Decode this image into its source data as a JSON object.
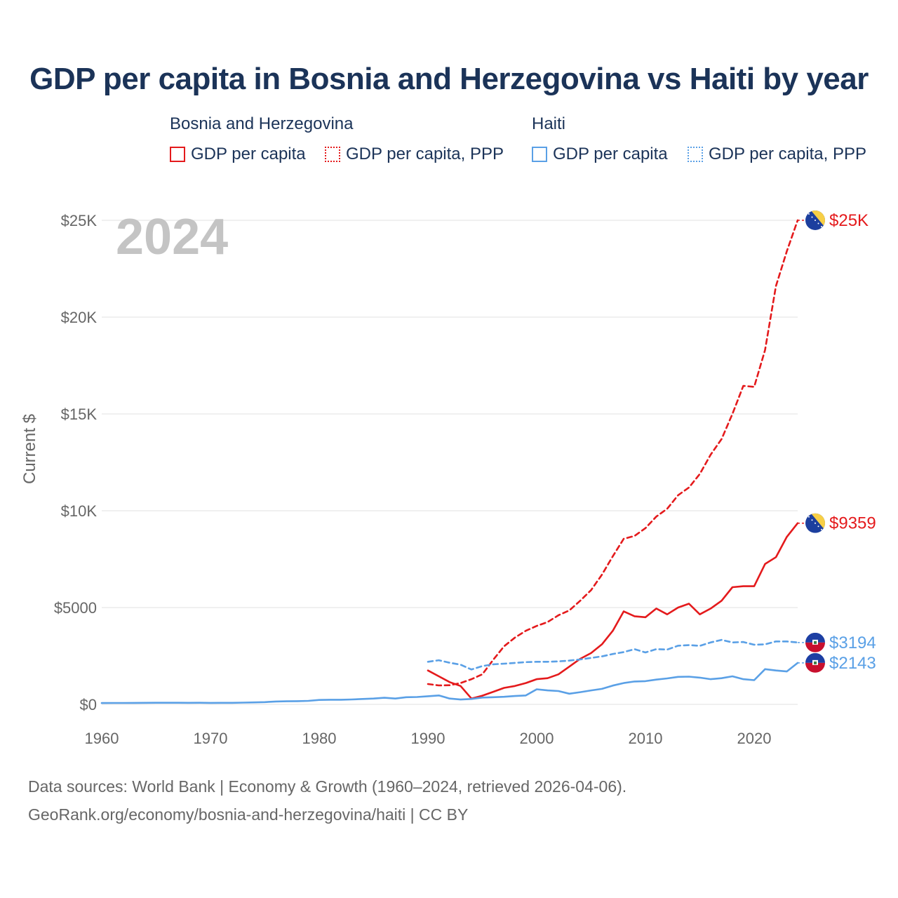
{
  "chart_data": {
    "type": "line",
    "title": "GDP per capita in Bosnia and Herzegovina vs Haiti by year",
    "year_watermark": "2024",
    "ylabel": "Current $",
    "xlabel": "",
    "xlim": [
      1960,
      2024
    ],
    "ylim": [
      0,
      25000
    ],
    "x_ticks": [
      1960,
      1970,
      1980,
      1990,
      2000,
      2010,
      2020
    ],
    "x_tick_labels": [
      "1960",
      "1970",
      "1980",
      "1990",
      "2000",
      "2010",
      "2020"
    ],
    "y_ticks": [
      0,
      5000,
      10000,
      15000,
      20000,
      25000
    ],
    "y_tick_labels": [
      "$0",
      "$5000",
      "$10K",
      "$15K",
      "$20K",
      "$25K"
    ],
    "legend": {
      "groups": [
        {
          "country": "Bosnia and Herzegovina",
          "items": [
            "GDP per capita",
            "GDP per capita, PPP"
          ]
        },
        {
          "country": "Haiti",
          "items": [
            "GDP per capita",
            "GDP per capita, PPP"
          ]
        }
      ]
    },
    "series": [
      {
        "name": "Bosnia and Herzegovina — GDP per capita, PPP",
        "color": "#e41a1c",
        "style": "dashed",
        "x": [
          1990,
          1991,
          1992,
          1993,
          1994,
          1995,
          1996,
          1997,
          1998,
          1999,
          2000,
          2001,
          2002,
          2003,
          2004,
          2005,
          2006,
          2007,
          2008,
          2009,
          2010,
          2011,
          2012,
          2013,
          2014,
          2015,
          2016,
          2017,
          2018,
          2019,
          2020,
          2021,
          2022,
          2023,
          2024
        ],
        "values": [
          1050,
          980,
          990,
          1100,
          1300,
          1550,
          2300,
          3000,
          3450,
          3800,
          4050,
          4250,
          4600,
          4850,
          5350,
          5900,
          6700,
          7650,
          8550,
          8700,
          9100,
          9700,
          10100,
          10800,
          11200,
          11900,
          12900,
          13700,
          15000,
          16450,
          16400,
          18300,
          21600,
          23400,
          25000
        ],
        "end_label": "$25K"
      },
      {
        "name": "Bosnia and Herzegovina — GDP per capita",
        "color": "#e41a1c",
        "style": "solid",
        "x": [
          1990,
          1991,
          1992,
          1993,
          1994,
          1995,
          1996,
          1997,
          1998,
          1999,
          2000,
          2001,
          2002,
          2003,
          2004,
          2005,
          2006,
          2007,
          2008,
          2009,
          2010,
          2011,
          2012,
          2013,
          2014,
          2015,
          2016,
          2017,
          2018,
          2019,
          2020,
          2021,
          2022,
          2023,
          2024
        ],
        "values": [
          1750,
          1450,
          1150,
          950,
          300,
          450,
          650,
          850,
          950,
          1100,
          1300,
          1350,
          1550,
          1950,
          2350,
          2650,
          3100,
          3800,
          4800,
          4550,
          4500,
          4950,
          4650,
          5000,
          5200,
          4650,
          4950,
          5350,
          6050,
          6100,
          6100,
          7250,
          7600,
          8650,
          9359
        ],
        "end_label": "$9359"
      },
      {
        "name": "Haiti — GDP per capita, PPP",
        "color": "#5aa0e6",
        "style": "dashed",
        "x": [
          1990,
          1991,
          1992,
          1993,
          1994,
          1995,
          1996,
          1997,
          1998,
          1999,
          2000,
          2001,
          2002,
          2003,
          2004,
          2005,
          2006,
          2007,
          2008,
          2009,
          2010,
          2011,
          2012,
          2013,
          2014,
          2015,
          2016,
          2017,
          2018,
          2019,
          2020,
          2021,
          2022,
          2023,
          2024
        ],
        "values": [
          2200,
          2280,
          2150,
          2050,
          1800,
          1980,
          2070,
          2100,
          2140,
          2180,
          2200,
          2200,
          2220,
          2260,
          2320,
          2400,
          2480,
          2600,
          2700,
          2850,
          2680,
          2850,
          2830,
          3030,
          3060,
          3020,
          3200,
          3330,
          3200,
          3220,
          3080,
          3100,
          3250,
          3250,
          3194
        ],
        "end_label": "$3194"
      },
      {
        "name": "Haiti — GDP per capita",
        "color": "#5aa0e6",
        "style": "solid",
        "x": [
          1960,
          1961,
          1962,
          1963,
          1964,
          1965,
          1966,
          1967,
          1968,
          1969,
          1970,
          1971,
          1972,
          1973,
          1974,
          1975,
          1976,
          1977,
          1978,
          1979,
          1980,
          1981,
          1982,
          1983,
          1984,
          1985,
          1986,
          1987,
          1988,
          1989,
          1990,
          1991,
          1992,
          1993,
          1994,
          1995,
          1996,
          1997,
          1998,
          1999,
          2000,
          2001,
          2002,
          2003,
          2004,
          2005,
          2006,
          2007,
          2008,
          2009,
          2010,
          2011,
          2012,
          2013,
          2014,
          2015,
          2016,
          2017,
          2018,
          2019,
          2020,
          2021,
          2022,
          2023,
          2024
        ],
        "values": [
          70,
          72,
          74,
          75,
          80,
          82,
          84,
          83,
          80,
          85,
          75,
          78,
          80,
          90,
          100,
          115,
          150,
          160,
          165,
          180,
          230,
          240,
          240,
          255,
          280,
          300,
          340,
          300,
          370,
          380,
          420,
          460,
          300,
          250,
          280,
          350,
          370,
          390,
          430,
          460,
          780,
          720,
          690,
          550,
          630,
          720,
          800,
          970,
          1100,
          1180,
          1200,
          1280,
          1340,
          1420,
          1430,
          1380,
          1300,
          1350,
          1450,
          1300,
          1250,
          1820,
          1750,
          1700,
          2143
        ],
        "end_label": "$2143"
      }
    ]
  },
  "footer": {
    "line1": "Data sources: World Bank | Economy & Growth (1960–2024, retrieved 2026-04-06).",
    "line2": "GeoRank.org/economy/bosnia-and-herzegovina/haiti | CC BY"
  },
  "colors": {
    "bosnia": "#e41a1c",
    "haiti": "#5aa0e6",
    "title": "#1b3358",
    "text_muted": "#666666",
    "grid": "#e6e6e6"
  },
  "icons": {
    "bosnia_flag": "bosnia-flag-icon",
    "haiti_flag": "haiti-flag-icon"
  }
}
